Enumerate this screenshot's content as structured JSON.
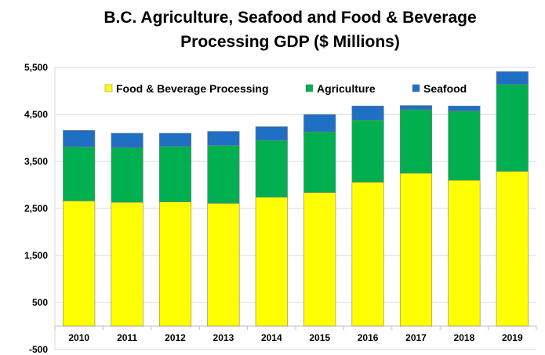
{
  "chart_data": {
    "type": "bar",
    "stacked": true,
    "title": [
      "B.C. Agriculture, Seafood and Food & Beverage",
      "Processing GDP ($ Millions)"
    ],
    "categories": [
      "2010",
      "2011",
      "2012",
      "2013",
      "2014",
      "2015",
      "2016",
      "2017",
      "2018",
      "2019"
    ],
    "series": [
      {
        "name": "Food & Beverage Processing",
        "color": "#ffff00",
        "values": [
          2660,
          2630,
          2640,
          2610,
          2740,
          2840,
          3060,
          3250,
          3100,
          3290
        ]
      },
      {
        "name": "Agriculture",
        "color": "#00b050",
        "values": [
          1150,
          1160,
          1180,
          1230,
          1210,
          1290,
          1320,
          1350,
          1470,
          1850
        ]
      },
      {
        "name": "Seafood",
        "color": "#1f6fc5",
        "values": [
          350,
          310,
          280,
          300,
          290,
          370,
          300,
          90,
          110,
          270
        ]
      }
    ],
    "ylim": [
      -500,
      5500
    ],
    "y_ticks": [
      -500,
      500,
      1500,
      2500,
      3500,
      4500,
      5500
    ],
    "y_tick_labels": [
      "-500",
      "500",
      "1,500",
      "2,500",
      "3,500",
      "4,500",
      "5,500"
    ],
    "grid": true,
    "legend_position": "top"
  }
}
